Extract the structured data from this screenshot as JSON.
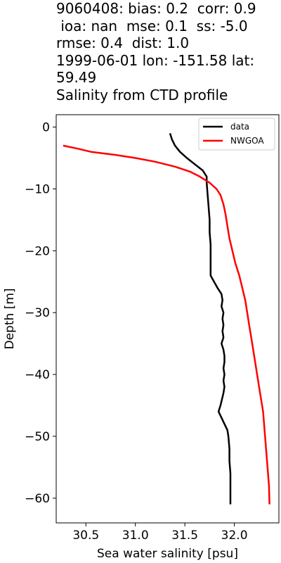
{
  "chart_data": {
    "type": "line",
    "title_lines": [
      "9060408: bias: 0.2  corr: 0.9",
      " ioa: nan  mse: 0.1  ss: -5.0",
      "rmse: 0.4  dist: 1.0",
      "1999-06-01 lon: -151.58 lat:",
      "59.49",
      "Salinity from CTD profile"
    ],
    "xlabel": "Sea water salinity [psu]",
    "ylabel": "Depth [m]",
    "xlim": [
      30.2,
      32.45
    ],
    "ylim": [
      -64,
      2
    ],
    "xticks": [
      30.5,
      31.0,
      31.5,
      32.0
    ],
    "xtick_labels": [
      "30.5",
      "31.0",
      "31.5",
      "32.0"
    ],
    "yticks": [
      0,
      -10,
      -20,
      -30,
      -40,
      -50,
      -60
    ],
    "ytick_labels": [
      "0",
      "−10",
      "−20",
      "−30",
      "−40",
      "−50",
      "−60"
    ],
    "legend_position": "top-right",
    "series": [
      {
        "name": "data",
        "color": "#000000",
        "x": [
          31.35,
          31.37,
          31.4,
          31.45,
          31.52,
          31.6,
          31.68,
          31.72,
          31.72,
          31.73,
          31.74,
          31.75,
          31.75,
          31.76,
          31.76,
          31.76,
          31.76,
          31.83,
          31.87,
          31.88,
          31.87,
          31.89,
          31.88,
          31.89,
          31.88,
          31.89,
          31.87,
          31.89,
          31.9,
          31.9,
          31.89,
          31.9,
          31.89,
          31.9,
          31.89,
          31.86,
          31.84,
          31.87,
          31.9,
          31.93,
          31.94,
          31.95,
          31.95,
          31.96,
          31.96,
          31.96
        ],
        "y": [
          -1,
          -2,
          -3,
          -4,
          -5,
          -6,
          -7,
          -8,
          -9,
          -11,
          -13,
          -15,
          -17,
          -19,
          -21,
          -23,
          -24,
          -26,
          -27,
          -28,
          -29,
          -30,
          -31,
          -32,
          -33,
          -34,
          -35,
          -36,
          -37,
          -38,
          -39,
          -40,
          -41,
          -42,
          -43,
          -45,
          -46,
          -47,
          -48,
          -49,
          -50,
          -52,
          -54,
          -56,
          -58,
          -61
        ]
      },
      {
        "name": "NWGOA",
        "color": "#ff0000",
        "x": [
          30.27,
          30.42,
          30.55,
          30.8,
          31.0,
          31.2,
          31.4,
          31.55,
          31.65,
          31.75,
          31.82,
          31.86,
          31.89,
          31.91,
          31.93,
          31.95,
          31.98,
          32.01,
          32.05,
          32.08,
          32.11,
          32.13,
          32.15,
          32.17,
          32.19,
          32.21,
          32.23,
          32.25,
          32.27,
          32.29,
          32.3,
          32.31,
          32.32,
          32.33,
          32.34,
          32.35,
          32.355
        ],
        "y": [
          -3,
          -3.5,
          -4,
          -4.5,
          -5,
          -5.6,
          -6.4,
          -7.2,
          -8,
          -9,
          -10,
          -11,
          -12.5,
          -14,
          -16,
          -18,
          -20,
          -22,
          -24,
          -26,
          -28,
          -30,
          -32,
          -34,
          -36,
          -38,
          -40,
          -42,
          -44,
          -46,
          -48,
          -50,
          -52,
          -54,
          -56,
          -58,
          -61
        ]
      }
    ]
  }
}
